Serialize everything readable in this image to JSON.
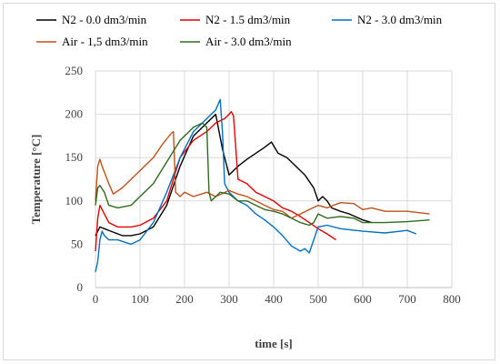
{
  "chart_data": {
    "type": "line",
    "xlabel": "time [s]",
    "ylabel": "Temperature [°C]",
    "xlim": [
      0,
      800
    ],
    "ylim": [
      0,
      250
    ],
    "xticks": [
      0,
      100,
      200,
      300,
      400,
      500,
      600,
      700,
      800
    ],
    "yticks": [
      0,
      50,
      100,
      150,
      200,
      250
    ],
    "grid": true,
    "legend_position": "top",
    "series": [
      {
        "name": "N2 - 0.0 dm3/min",
        "color": "#000000",
        "x": [
          0,
          10,
          20,
          40,
          60,
          80,
          100,
          130,
          160,
          190,
          220,
          250,
          270,
          285,
          300,
          320,
          340,
          360,
          380,
          395,
          410,
          430,
          450,
          470,
          490,
          500,
          510,
          520,
          530,
          550,
          570,
          600,
          620
        ],
        "y": [
          60,
          70,
          68,
          64,
          60,
          60,
          62,
          70,
          95,
          140,
          175,
          190,
          200,
          160,
          130,
          140,
          148,
          155,
          162,
          168,
          155,
          150,
          140,
          130,
          115,
          100,
          105,
          100,
          92,
          88,
          85,
          78,
          75
        ]
      },
      {
        "name": "N2 - 1.5 dm3/min",
        "color": "#e00000",
        "x": [
          0,
          5,
          10,
          20,
          30,
          50,
          80,
          100,
          130,
          160,
          190,
          220,
          250,
          270,
          290,
          300,
          305,
          310,
          320,
          340,
          360,
          380,
          400,
          420,
          440,
          460,
          480,
          500,
          520,
          540
        ],
        "y": [
          42,
          80,
          95,
          85,
          75,
          70,
          70,
          72,
          80,
          100,
          150,
          170,
          180,
          190,
          195,
          200,
          203,
          198,
          125,
          120,
          110,
          105,
          100,
          92,
          88,
          82,
          75,
          68,
          62,
          55
        ]
      },
      {
        "name": "N2 - 3.0 dm3/min",
        "color": "#0070c0",
        "x": [
          0,
          5,
          10,
          15,
          20,
          30,
          50,
          80,
          100,
          130,
          160,
          190,
          220,
          250,
          270,
          280,
          285,
          290,
          300,
          320,
          340,
          360,
          380,
          400,
          420,
          440,
          460,
          470,
          480,
          490,
          500,
          520,
          550,
          600,
          650,
          700,
          720
        ],
        "y": [
          18,
          30,
          55,
          65,
          60,
          55,
          55,
          50,
          55,
          75,
          110,
          150,
          180,
          195,
          205,
          217,
          180,
          120,
          110,
          100,
          95,
          85,
          78,
          70,
          60,
          48,
          42,
          45,
          40,
          55,
          70,
          72,
          68,
          65,
          63,
          66,
          62
        ]
      },
      {
        "name": "Air - 1,5 dm3/min",
        "color": "#c0501a",
        "x": [
          0,
          5,
          10,
          15,
          30,
          40,
          60,
          80,
          100,
          130,
          150,
          170,
          175,
          180,
          190,
          200,
          220,
          250,
          270,
          300,
          320,
          340,
          360,
          380,
          400,
          420,
          440,
          460,
          480,
          500,
          520,
          550,
          580,
          600,
          620,
          650,
          700,
          750
        ],
        "y": [
          100,
          140,
          148,
          140,
          120,
          108,
          115,
          125,
          135,
          150,
          165,
          178,
          180,
          110,
          105,
          110,
          105,
          110,
          105,
          112,
          108,
          105,
          100,
          95,
          90,
          88,
          80,
          85,
          90,
          95,
          92,
          98,
          97,
          90,
          92,
          88,
          88,
          85
        ]
      },
      {
        "name": "Air - 3.0 dm3/min",
        "color": "#2e6b1f",
        "x": [
          0,
          5,
          10,
          20,
          30,
          50,
          80,
          100,
          130,
          160,
          190,
          220,
          240,
          250,
          255,
          260,
          270,
          280,
          300,
          320,
          340,
          360,
          380,
          400,
          420,
          440,
          460,
          480,
          490,
          500,
          520,
          550,
          580,
          600,
          650,
          700,
          750
        ],
        "y": [
          95,
          115,
          118,
          110,
          95,
          92,
          95,
          105,
          120,
          145,
          170,
          185,
          190,
          185,
          110,
          100,
          105,
          110,
          108,
          100,
          100,
          95,
          90,
          88,
          85,
          80,
          75,
          72,
          75,
          85,
          80,
          82,
          80,
          75,
          75,
          76,
          78
        ]
      }
    ]
  }
}
